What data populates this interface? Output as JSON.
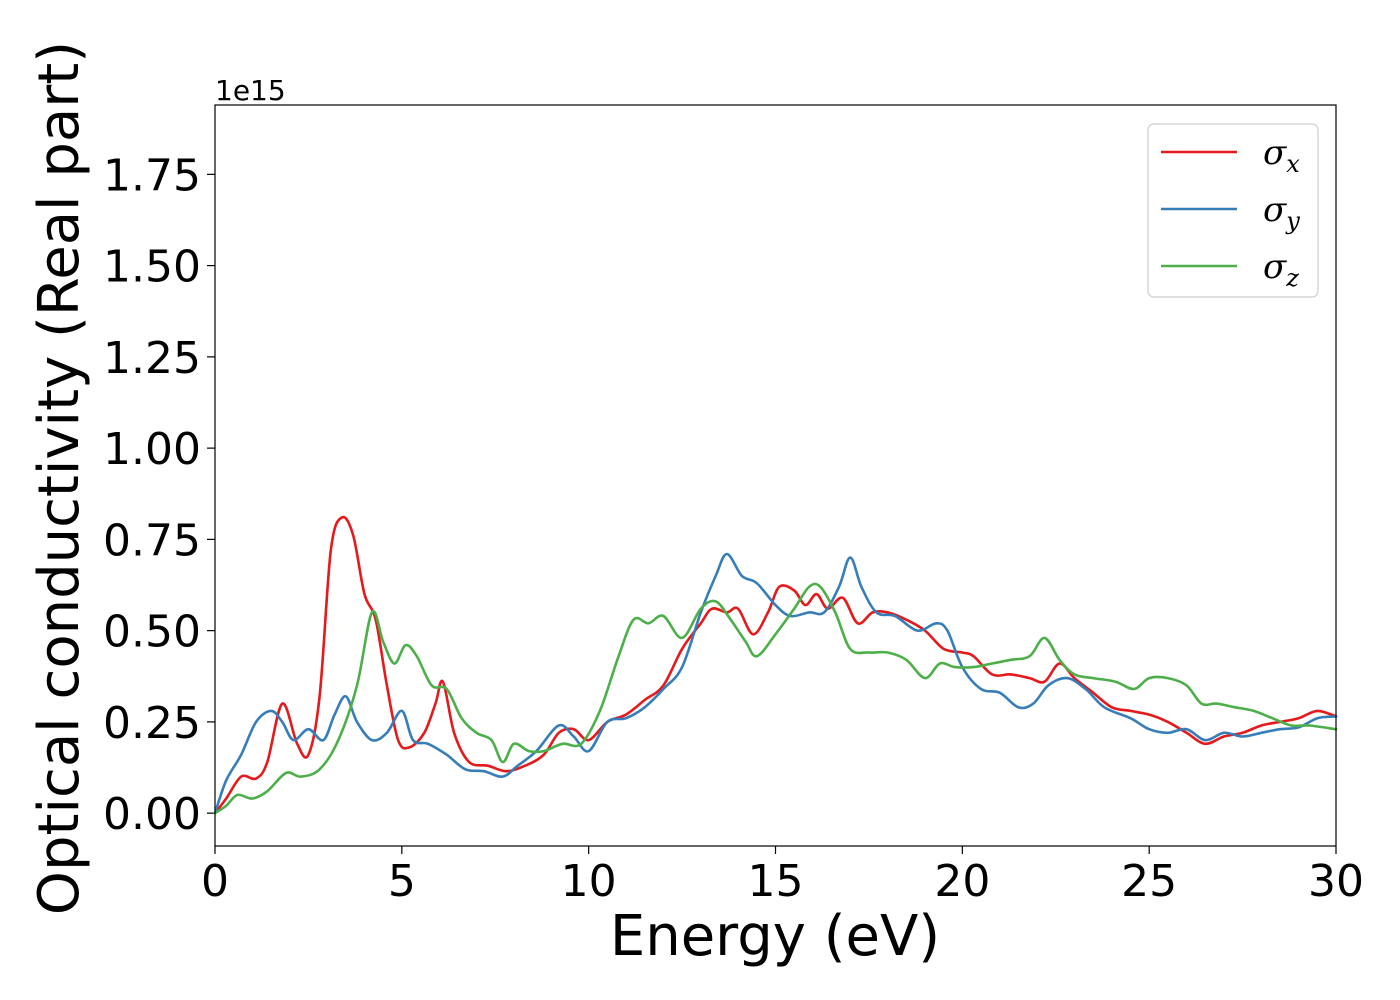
{
  "chart_data": {
    "type": "line",
    "xlabel": "Energy (eV)",
    "ylabel": "Optical conductivity (Real part)",
    "y_offset_label": "1e15",
    "xlim": [
      0,
      30
    ],
    "ylim": [
      -0.09,
      1.94
    ],
    "x_ticks": [
      0,
      5,
      10,
      15,
      20,
      25,
      30
    ],
    "x_tick_labels": [
      "0",
      "5",
      "10",
      "15",
      "20",
      "25",
      "30"
    ],
    "y_ticks": [
      0.0,
      0.25,
      0.5,
      0.75,
      1.0,
      1.25,
      1.5,
      1.75
    ],
    "y_tick_labels": [
      "0.00",
      "0.25",
      "0.50",
      "0.75",
      "1.00",
      "1.25",
      "1.50",
      "1.75"
    ],
    "grid": false,
    "legend_position": "top-right",
    "series": [
      {
        "name": "σx",
        "symbol": "σ",
        "subscript": "x",
        "color": "#e41a1c",
        "points": [
          [
            0,
            0
          ],
          [
            0.3,
            0.04
          ],
          [
            0.7,
            0.1
          ],
          [
            1.1,
            0.095
          ],
          [
            1.4,
            0.14
          ],
          [
            1.8,
            0.3
          ],
          [
            2.2,
            0.19
          ],
          [
            2.5,
            0.16
          ],
          [
            2.8,
            0.32
          ],
          [
            3.1,
            0.72
          ],
          [
            3.4,
            0.81
          ],
          [
            3.7,
            0.76
          ],
          [
            4.0,
            0.6
          ],
          [
            4.3,
            0.53
          ],
          [
            4.6,
            0.35
          ],
          [
            4.9,
            0.2
          ],
          [
            5.2,
            0.18
          ],
          [
            5.6,
            0.22
          ],
          [
            5.9,
            0.3
          ],
          [
            6.1,
            0.36
          ],
          [
            6.4,
            0.22
          ],
          [
            6.8,
            0.14
          ],
          [
            7.3,
            0.13
          ],
          [
            7.8,
            0.115
          ],
          [
            8.3,
            0.13
          ],
          [
            8.8,
            0.16
          ],
          [
            9.2,
            0.22
          ],
          [
            9.6,
            0.23
          ],
          [
            10.0,
            0.2
          ],
          [
            10.5,
            0.25
          ],
          [
            11.0,
            0.27
          ],
          [
            11.5,
            0.31
          ],
          [
            12.0,
            0.35
          ],
          [
            12.5,
            0.45
          ],
          [
            13.0,
            0.52
          ],
          [
            13.3,
            0.56
          ],
          [
            13.7,
            0.55
          ],
          [
            14.0,
            0.56
          ],
          [
            14.4,
            0.49
          ],
          [
            14.8,
            0.55
          ],
          [
            15.1,
            0.62
          ],
          [
            15.5,
            0.61
          ],
          [
            15.8,
            0.57
          ],
          [
            16.1,
            0.6
          ],
          [
            16.4,
            0.56
          ],
          [
            16.8,
            0.59
          ],
          [
            17.2,
            0.52
          ],
          [
            17.6,
            0.55
          ],
          [
            18.0,
            0.55
          ],
          [
            18.5,
            0.53
          ],
          [
            19.0,
            0.5
          ],
          [
            19.5,
            0.45
          ],
          [
            20.0,
            0.44
          ],
          [
            20.3,
            0.43
          ],
          [
            20.8,
            0.38
          ],
          [
            21.3,
            0.38
          ],
          [
            21.8,
            0.37
          ],
          [
            22.2,
            0.36
          ],
          [
            22.6,
            0.41
          ],
          [
            23.0,
            0.37
          ],
          [
            23.5,
            0.33
          ],
          [
            24.0,
            0.29
          ],
          [
            24.5,
            0.28
          ],
          [
            25.0,
            0.27
          ],
          [
            25.5,
            0.25
          ],
          [
            26.0,
            0.22
          ],
          [
            26.5,
            0.19
          ],
          [
            27.0,
            0.21
          ],
          [
            27.5,
            0.22
          ],
          [
            28.0,
            0.24
          ],
          [
            28.5,
            0.25
          ],
          [
            29.0,
            0.26
          ],
          [
            29.5,
            0.28
          ],
          [
            30.0,
            0.265
          ]
        ]
      },
      {
        "name": "σy",
        "symbol": "σ",
        "subscript": "y",
        "color": "#377eb8",
        "points": [
          [
            0,
            0
          ],
          [
            0.3,
            0.09
          ],
          [
            0.7,
            0.16
          ],
          [
            1.1,
            0.25
          ],
          [
            1.5,
            0.28
          ],
          [
            1.8,
            0.25
          ],
          [
            2.1,
            0.2
          ],
          [
            2.5,
            0.23
          ],
          [
            2.9,
            0.2
          ],
          [
            3.2,
            0.27
          ],
          [
            3.5,
            0.32
          ],
          [
            3.8,
            0.25
          ],
          [
            4.2,
            0.2
          ],
          [
            4.6,
            0.22
          ],
          [
            5.0,
            0.28
          ],
          [
            5.3,
            0.2
          ],
          [
            5.7,
            0.19
          ],
          [
            6.2,
            0.16
          ],
          [
            6.7,
            0.12
          ],
          [
            7.2,
            0.115
          ],
          [
            7.7,
            0.1
          ],
          [
            8.1,
            0.13
          ],
          [
            8.6,
            0.17
          ],
          [
            9.2,
            0.24
          ],
          [
            9.6,
            0.21
          ],
          [
            10.0,
            0.17
          ],
          [
            10.5,
            0.25
          ],
          [
            11.0,
            0.26
          ],
          [
            11.5,
            0.29
          ],
          [
            12.0,
            0.34
          ],
          [
            12.5,
            0.4
          ],
          [
            13.0,
            0.55
          ],
          [
            13.4,
            0.65
          ],
          [
            13.7,
            0.71
          ],
          [
            14.1,
            0.65
          ],
          [
            14.5,
            0.63
          ],
          [
            15.0,
            0.57
          ],
          [
            15.4,
            0.54
          ],
          [
            15.9,
            0.55
          ],
          [
            16.3,
            0.55
          ],
          [
            16.7,
            0.62
          ],
          [
            17.0,
            0.7
          ],
          [
            17.3,
            0.62
          ],
          [
            17.7,
            0.55
          ],
          [
            18.2,
            0.54
          ],
          [
            18.8,
            0.5
          ],
          [
            19.3,
            0.52
          ],
          [
            19.6,
            0.5
          ],
          [
            20.0,
            0.4
          ],
          [
            20.5,
            0.34
          ],
          [
            21.0,
            0.33
          ],
          [
            21.5,
            0.29
          ],
          [
            21.9,
            0.3
          ],
          [
            22.3,
            0.35
          ],
          [
            22.8,
            0.37
          ],
          [
            23.3,
            0.34
          ],
          [
            23.8,
            0.29
          ],
          [
            24.5,
            0.26
          ],
          [
            25.0,
            0.23
          ],
          [
            25.5,
            0.22
          ],
          [
            26.0,
            0.23
          ],
          [
            26.5,
            0.2
          ],
          [
            27.0,
            0.22
          ],
          [
            27.5,
            0.21
          ],
          [
            28.0,
            0.22
          ],
          [
            28.5,
            0.23
          ],
          [
            29.0,
            0.235
          ],
          [
            29.5,
            0.26
          ],
          [
            30.0,
            0.265
          ]
        ]
      },
      {
        "name": "σz",
        "symbol": "σ",
        "subscript": "z",
        "color": "#4daf4a",
        "points": [
          [
            0,
            0
          ],
          [
            0.3,
            0.02
          ],
          [
            0.6,
            0.05
          ],
          [
            1.0,
            0.04
          ],
          [
            1.4,
            0.06
          ],
          [
            1.9,
            0.11
          ],
          [
            2.3,
            0.1
          ],
          [
            2.8,
            0.12
          ],
          [
            3.3,
            0.2
          ],
          [
            3.8,
            0.35
          ],
          [
            4.2,
            0.55
          ],
          [
            4.5,
            0.47
          ],
          [
            4.8,
            0.41
          ],
          [
            5.1,
            0.46
          ],
          [
            5.4,
            0.43
          ],
          [
            5.8,
            0.35
          ],
          [
            6.2,
            0.34
          ],
          [
            6.6,
            0.26
          ],
          [
            7.0,
            0.22
          ],
          [
            7.4,
            0.2
          ],
          [
            7.7,
            0.14
          ],
          [
            8.0,
            0.19
          ],
          [
            8.4,
            0.17
          ],
          [
            8.8,
            0.17
          ],
          [
            9.3,
            0.19
          ],
          [
            9.8,
            0.19
          ],
          [
            10.3,
            0.28
          ],
          [
            10.8,
            0.43
          ],
          [
            11.2,
            0.53
          ],
          [
            11.6,
            0.52
          ],
          [
            12.0,
            0.54
          ],
          [
            12.5,
            0.48
          ],
          [
            13.0,
            0.56
          ],
          [
            13.4,
            0.58
          ],
          [
            13.8,
            0.53
          ],
          [
            14.2,
            0.47
          ],
          [
            14.5,
            0.43
          ],
          [
            15.0,
            0.49
          ],
          [
            15.5,
            0.56
          ],
          [
            15.9,
            0.62
          ],
          [
            16.2,
            0.62
          ],
          [
            16.6,
            0.55
          ],
          [
            17.0,
            0.45
          ],
          [
            17.5,
            0.44
          ],
          [
            18.0,
            0.44
          ],
          [
            18.5,
            0.42
          ],
          [
            19.0,
            0.37
          ],
          [
            19.4,
            0.41
          ],
          [
            19.8,
            0.4
          ],
          [
            20.3,
            0.4
          ],
          [
            20.8,
            0.41
          ],
          [
            21.3,
            0.42
          ],
          [
            21.8,
            0.43
          ],
          [
            22.2,
            0.48
          ],
          [
            22.6,
            0.42
          ],
          [
            23.0,
            0.38
          ],
          [
            23.5,
            0.37
          ],
          [
            24.1,
            0.36
          ],
          [
            24.6,
            0.34
          ],
          [
            25.0,
            0.37
          ],
          [
            25.5,
            0.37
          ],
          [
            26.0,
            0.35
          ],
          [
            26.4,
            0.3
          ],
          [
            26.8,
            0.3
          ],
          [
            27.3,
            0.29
          ],
          [
            27.8,
            0.28
          ],
          [
            28.3,
            0.26
          ],
          [
            28.8,
            0.24
          ],
          [
            29.3,
            0.24
          ],
          [
            30.0,
            0.23
          ]
        ]
      }
    ]
  }
}
